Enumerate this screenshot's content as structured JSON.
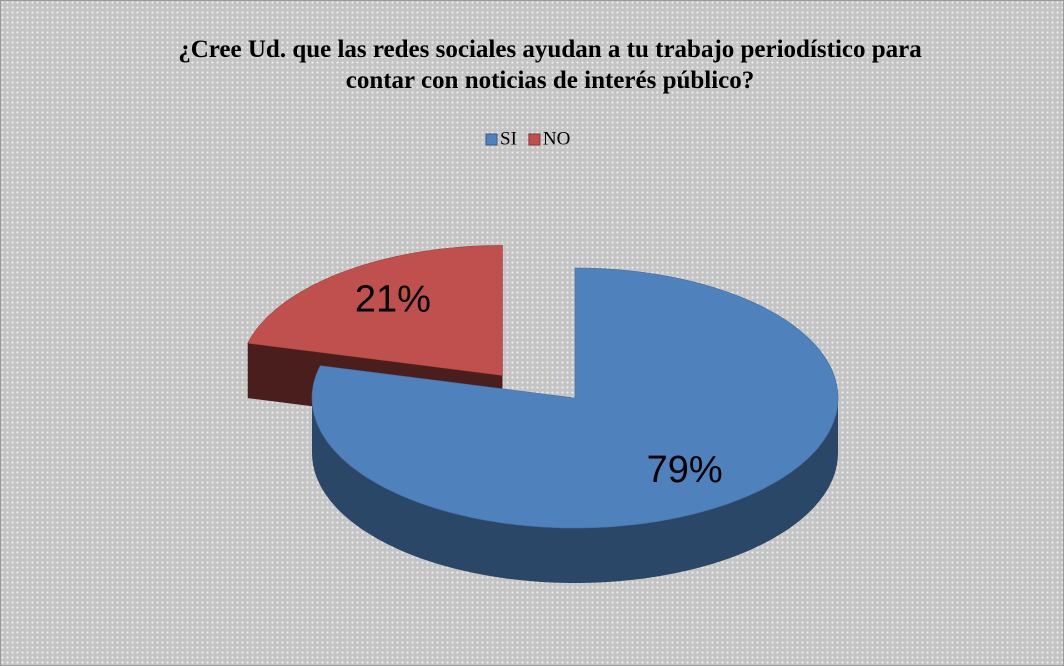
{
  "chart_data": {
    "type": "pie",
    "title": "¿Cree Ud. que las redes sociales ayudan a tu trabajo periodístico para contar con noticias de interés público?",
    "categories": [
      "SI",
      "NO"
    ],
    "values": [
      79,
      21
    ],
    "value_labels": [
      "79%",
      "21%"
    ],
    "colors": [
      "#4f81bd",
      "#c0504d"
    ],
    "legend": "top"
  }
}
